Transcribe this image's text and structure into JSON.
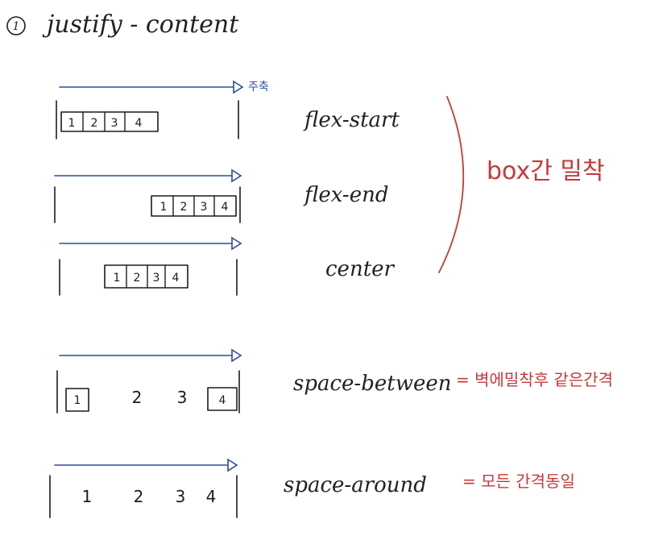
{
  "title": {
    "number": "1",
    "text": "justify - content"
  },
  "axis_note": "주축",
  "rows": [
    {
      "label": "flex-start",
      "items": [
        "1",
        "2",
        "3",
        "4"
      ]
    },
    {
      "label": "flex-end",
      "items": [
        "1",
        "2",
        "3",
        "4"
      ]
    },
    {
      "label": "center",
      "items": [
        "1",
        "2",
        "3",
        "4"
      ]
    },
    {
      "label": "space-between",
      "items": [
        "1",
        "2",
        "3",
        "4"
      ]
    },
    {
      "label": "space-around",
      "items": [
        "1",
        "2",
        "3",
        "4"
      ]
    }
  ],
  "group_note": "box간 밀착",
  "space_between_note": "= 벽에밀착후 같은간격",
  "space_around_note": "= 모든 간격동일",
  "colors": {
    "ink": "#1c1c1c",
    "arrow": "#2f4aa0",
    "annotation": "#c8383a"
  }
}
